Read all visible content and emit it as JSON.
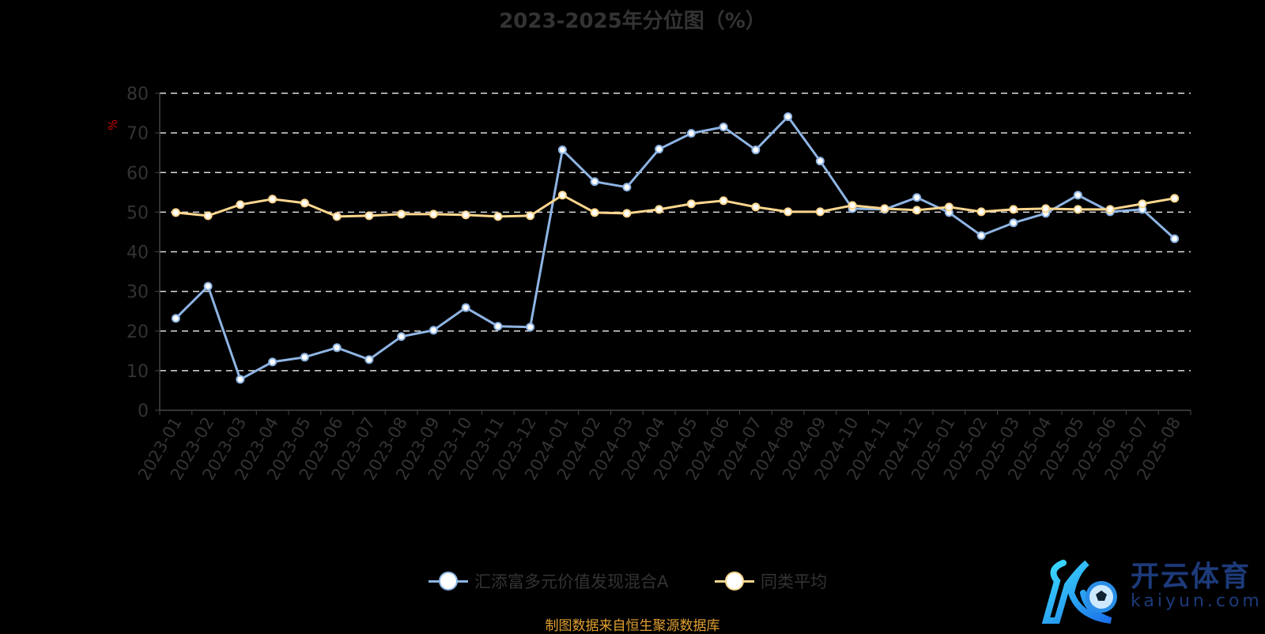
{
  "chart_data": {
    "type": "line",
    "title": "2023-2025年分位图（%）",
    "ylabel": "%",
    "ylim": [
      0,
      80
    ],
    "yticks": [
      0,
      10,
      20,
      30,
      40,
      50,
      60,
      70,
      80
    ],
    "grid": true,
    "legend_position": "bottom",
    "categories": [
      "2023-01",
      "2023-02",
      "2023-03",
      "2023-04",
      "2023-05",
      "2023-06",
      "2023-07",
      "2023-08",
      "2023-09",
      "2023-10",
      "2023-11",
      "2023-12",
      "2024-01",
      "2024-02",
      "2024-03",
      "2024-04",
      "2024-05",
      "2024-06",
      "2024-07",
      "2024-08",
      "2024-09",
      "2024-10",
      "2024-11",
      "2024-12",
      "2025-01",
      "2025-02",
      "2025-03",
      "2025-04",
      "2025-05",
      "2025-06",
      "2025-07",
      "2025-08"
    ],
    "series": [
      {
        "name": "汇添富多元价值发现混合A",
        "color": "#8eb4e3",
        "values": [
          23.2,
          31.3,
          7.8,
          12.2,
          13.4,
          15.8,
          12.8,
          18.6,
          20.2,
          25.9,
          21.2,
          21.0,
          65.7,
          57.7,
          56.3,
          65.9,
          69.9,
          71.5,
          65.7,
          74.1,
          62.9,
          50.9,
          50.7,
          53.7,
          49.9,
          44.1,
          47.3,
          49.7,
          54.3,
          50.1,
          50.7,
          43.3
        ]
      },
      {
        "name": "同类平均",
        "color": "#fcd68e",
        "values": [
          49.9,
          49.1,
          51.9,
          53.3,
          52.3,
          48.9,
          49.1,
          49.5,
          49.5,
          49.3,
          48.9,
          49.1,
          54.3,
          49.9,
          49.7,
          50.7,
          52.1,
          52.9,
          51.3,
          50.1,
          50.1,
          51.7,
          50.9,
          50.5,
          51.3,
          50.1,
          50.7,
          50.9,
          50.7,
          50.7,
          52.1,
          53.5
        ]
      }
    ]
  },
  "source": "制图数据来自恒生聚源数据库",
  "watermark": {
    "cn": "开云体育",
    "en": "kaiyun.com"
  }
}
